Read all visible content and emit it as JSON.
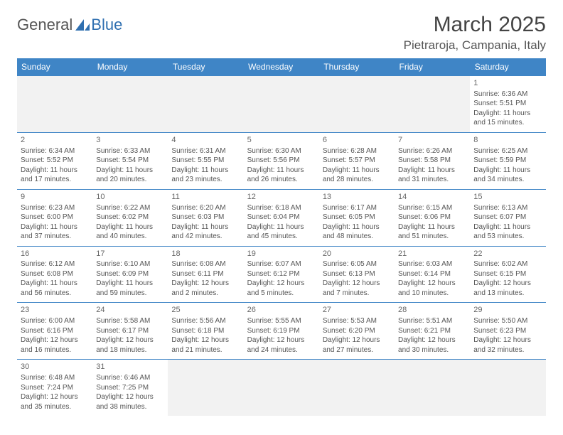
{
  "logo": {
    "text1": "General",
    "text2": "Blue",
    "color1": "#7a7a7a",
    "color2": "#2f6fb0"
  },
  "title": "March 2025",
  "location": "Pietraroja, Campania, Italy",
  "colors": {
    "header_bg": "#3f85c6",
    "header_fg": "#ffffff",
    "border": "#3f85c6",
    "empty_bg": "#f2f2f2",
    "text": "#555555"
  },
  "weekdays": [
    "Sunday",
    "Monday",
    "Tuesday",
    "Wednesday",
    "Thursday",
    "Friday",
    "Saturday"
  ],
  "weeks": [
    [
      null,
      null,
      null,
      null,
      null,
      null,
      {
        "d": "1",
        "sr": "Sunrise: 6:36 AM",
        "ss": "Sunset: 5:51 PM",
        "dl1": "Daylight: 11 hours",
        "dl2": "and 15 minutes."
      }
    ],
    [
      {
        "d": "2",
        "sr": "Sunrise: 6:34 AM",
        "ss": "Sunset: 5:52 PM",
        "dl1": "Daylight: 11 hours",
        "dl2": "and 17 minutes."
      },
      {
        "d": "3",
        "sr": "Sunrise: 6:33 AM",
        "ss": "Sunset: 5:54 PM",
        "dl1": "Daylight: 11 hours",
        "dl2": "and 20 minutes."
      },
      {
        "d": "4",
        "sr": "Sunrise: 6:31 AM",
        "ss": "Sunset: 5:55 PM",
        "dl1": "Daylight: 11 hours",
        "dl2": "and 23 minutes."
      },
      {
        "d": "5",
        "sr": "Sunrise: 6:30 AM",
        "ss": "Sunset: 5:56 PM",
        "dl1": "Daylight: 11 hours",
        "dl2": "and 26 minutes."
      },
      {
        "d": "6",
        "sr": "Sunrise: 6:28 AM",
        "ss": "Sunset: 5:57 PM",
        "dl1": "Daylight: 11 hours",
        "dl2": "and 28 minutes."
      },
      {
        "d": "7",
        "sr": "Sunrise: 6:26 AM",
        "ss": "Sunset: 5:58 PM",
        "dl1": "Daylight: 11 hours",
        "dl2": "and 31 minutes."
      },
      {
        "d": "8",
        "sr": "Sunrise: 6:25 AM",
        "ss": "Sunset: 5:59 PM",
        "dl1": "Daylight: 11 hours",
        "dl2": "and 34 minutes."
      }
    ],
    [
      {
        "d": "9",
        "sr": "Sunrise: 6:23 AM",
        "ss": "Sunset: 6:00 PM",
        "dl1": "Daylight: 11 hours",
        "dl2": "and 37 minutes."
      },
      {
        "d": "10",
        "sr": "Sunrise: 6:22 AM",
        "ss": "Sunset: 6:02 PM",
        "dl1": "Daylight: 11 hours",
        "dl2": "and 40 minutes."
      },
      {
        "d": "11",
        "sr": "Sunrise: 6:20 AM",
        "ss": "Sunset: 6:03 PM",
        "dl1": "Daylight: 11 hours",
        "dl2": "and 42 minutes."
      },
      {
        "d": "12",
        "sr": "Sunrise: 6:18 AM",
        "ss": "Sunset: 6:04 PM",
        "dl1": "Daylight: 11 hours",
        "dl2": "and 45 minutes."
      },
      {
        "d": "13",
        "sr": "Sunrise: 6:17 AM",
        "ss": "Sunset: 6:05 PM",
        "dl1": "Daylight: 11 hours",
        "dl2": "and 48 minutes."
      },
      {
        "d": "14",
        "sr": "Sunrise: 6:15 AM",
        "ss": "Sunset: 6:06 PM",
        "dl1": "Daylight: 11 hours",
        "dl2": "and 51 minutes."
      },
      {
        "d": "15",
        "sr": "Sunrise: 6:13 AM",
        "ss": "Sunset: 6:07 PM",
        "dl1": "Daylight: 11 hours",
        "dl2": "and 53 minutes."
      }
    ],
    [
      {
        "d": "16",
        "sr": "Sunrise: 6:12 AM",
        "ss": "Sunset: 6:08 PM",
        "dl1": "Daylight: 11 hours",
        "dl2": "and 56 minutes."
      },
      {
        "d": "17",
        "sr": "Sunrise: 6:10 AM",
        "ss": "Sunset: 6:09 PM",
        "dl1": "Daylight: 11 hours",
        "dl2": "and 59 minutes."
      },
      {
        "d": "18",
        "sr": "Sunrise: 6:08 AM",
        "ss": "Sunset: 6:11 PM",
        "dl1": "Daylight: 12 hours",
        "dl2": "and 2 minutes."
      },
      {
        "d": "19",
        "sr": "Sunrise: 6:07 AM",
        "ss": "Sunset: 6:12 PM",
        "dl1": "Daylight: 12 hours",
        "dl2": "and 5 minutes."
      },
      {
        "d": "20",
        "sr": "Sunrise: 6:05 AM",
        "ss": "Sunset: 6:13 PM",
        "dl1": "Daylight: 12 hours",
        "dl2": "and 7 minutes."
      },
      {
        "d": "21",
        "sr": "Sunrise: 6:03 AM",
        "ss": "Sunset: 6:14 PM",
        "dl1": "Daylight: 12 hours",
        "dl2": "and 10 minutes."
      },
      {
        "d": "22",
        "sr": "Sunrise: 6:02 AM",
        "ss": "Sunset: 6:15 PM",
        "dl1": "Daylight: 12 hours",
        "dl2": "and 13 minutes."
      }
    ],
    [
      {
        "d": "23",
        "sr": "Sunrise: 6:00 AM",
        "ss": "Sunset: 6:16 PM",
        "dl1": "Daylight: 12 hours",
        "dl2": "and 16 minutes."
      },
      {
        "d": "24",
        "sr": "Sunrise: 5:58 AM",
        "ss": "Sunset: 6:17 PM",
        "dl1": "Daylight: 12 hours",
        "dl2": "and 18 minutes."
      },
      {
        "d": "25",
        "sr": "Sunrise: 5:56 AM",
        "ss": "Sunset: 6:18 PM",
        "dl1": "Daylight: 12 hours",
        "dl2": "and 21 minutes."
      },
      {
        "d": "26",
        "sr": "Sunrise: 5:55 AM",
        "ss": "Sunset: 6:19 PM",
        "dl1": "Daylight: 12 hours",
        "dl2": "and 24 minutes."
      },
      {
        "d": "27",
        "sr": "Sunrise: 5:53 AM",
        "ss": "Sunset: 6:20 PM",
        "dl1": "Daylight: 12 hours",
        "dl2": "and 27 minutes."
      },
      {
        "d": "28",
        "sr": "Sunrise: 5:51 AM",
        "ss": "Sunset: 6:21 PM",
        "dl1": "Daylight: 12 hours",
        "dl2": "and 30 minutes."
      },
      {
        "d": "29",
        "sr": "Sunrise: 5:50 AM",
        "ss": "Sunset: 6:23 PM",
        "dl1": "Daylight: 12 hours",
        "dl2": "and 32 minutes."
      }
    ],
    [
      {
        "d": "30",
        "sr": "Sunrise: 6:48 AM",
        "ss": "Sunset: 7:24 PM",
        "dl1": "Daylight: 12 hours",
        "dl2": "and 35 minutes."
      },
      {
        "d": "31",
        "sr": "Sunrise: 6:46 AM",
        "ss": "Sunset: 7:25 PM",
        "dl1": "Daylight: 12 hours",
        "dl2": "and 38 minutes."
      },
      null,
      null,
      null,
      null,
      null
    ]
  ]
}
